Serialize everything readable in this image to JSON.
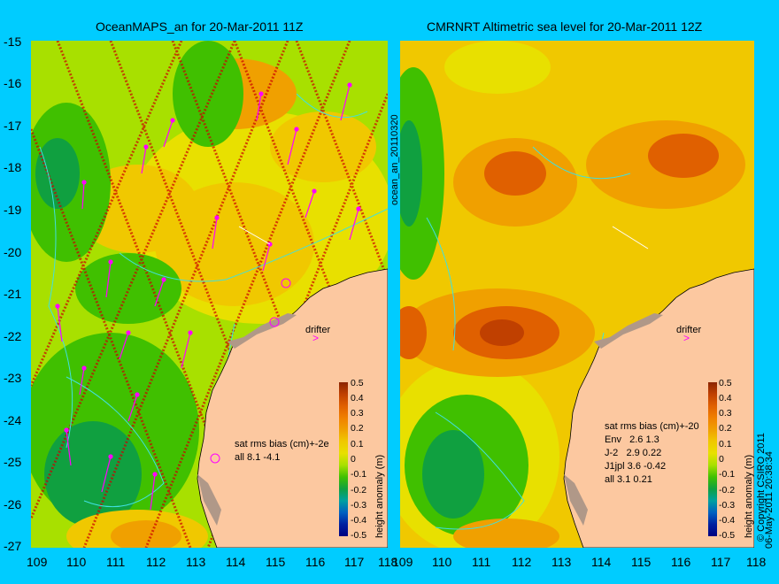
{
  "left_panel": {
    "title": "OceanMAPS_an for 20-Mar-2011 11Z",
    "stats_header": "sat rms bias (cm)+-2e",
    "stats_rows": [
      "all 8.1 -4.1"
    ],
    "drifter_label": "drifter"
  },
  "right_panel": {
    "title": "CMRNRT Altimetric sea level  for 20-Mar-2011 12Z",
    "stats_header": "sat rms bias (cm)+-20",
    "stats_rows": [
      "Env   2.6 1.3",
      "J-2   2.9 0.22",
      "J1jpl 3.6 -0.42",
      "all 3.1 0.21"
    ],
    "drifter_label": "drifter"
  },
  "vertical_label_middle": "ocean_an_20110320",
  "vertical_label_right": "06-May-2011 20:38:34",
  "copyright": "© Copyright CSIRO 2011",
  "axes": {
    "lat_ticks": [
      "-15",
      "-16",
      "-17",
      "-18",
      "-19",
      "-20",
      "-21",
      "-22",
      "-23",
      "-24",
      "-25",
      "-26",
      "-27"
    ],
    "lon_ticks": [
      "109",
      "110",
      "111",
      "112",
      "113",
      "114",
      "115",
      "116",
      "117",
      "118"
    ]
  },
  "colorbar": {
    "label": "height anomaly (m)",
    "ticks": [
      "0.5",
      "0.4",
      "0.3",
      "0.2",
      "0.1",
      "0",
      "-0.1",
      "-0.2",
      "-0.3",
      "-0.4",
      "-0.5"
    ],
    "colors": [
      "#8b2500",
      "#c04000",
      "#e06000",
      "#f08000",
      "#f0a000",
      "#f0c800",
      "#e8e000",
      "#a8e000",
      "#40c000",
      "#10a040",
      "#00a0a0",
      "#0060c0",
      "#0020a0",
      "#000080"
    ]
  },
  "colors": {
    "background": "#00ccff",
    "land": "#fcc8a0",
    "coast_detail": "#b09888",
    "contour": "#40e0e0",
    "drifter_arrow": "#ff00ff",
    "sat_track": "#cc0000"
  }
}
